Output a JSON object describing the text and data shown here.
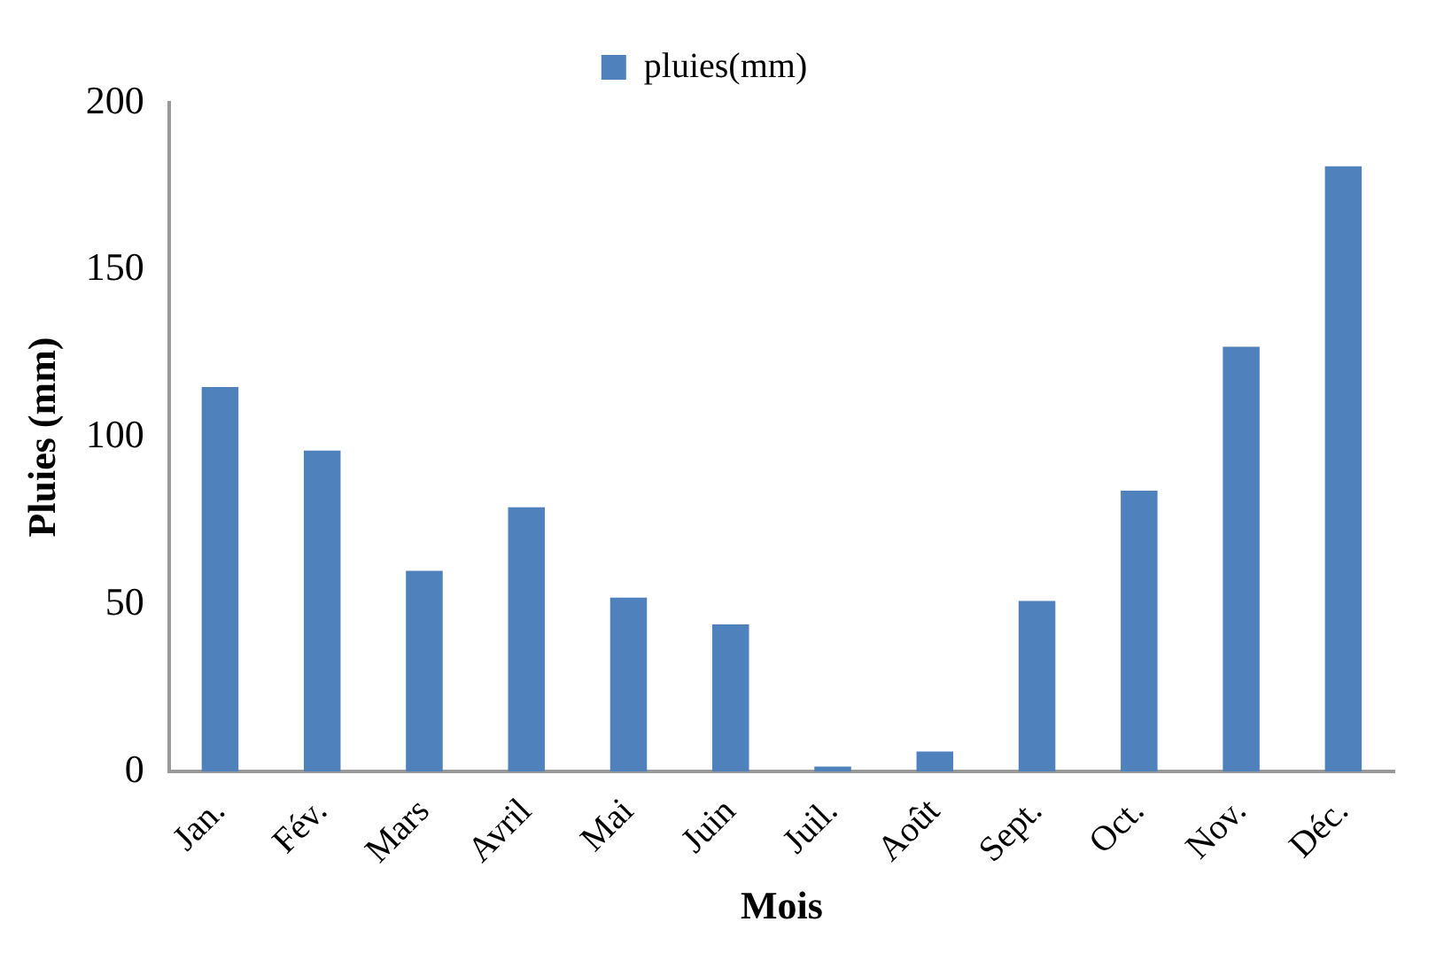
{
  "chart_data": {
    "type": "bar",
    "xlabel": "Mois",
    "ylabel": "Pluies (mm)",
    "categories": [
      "Jan.",
      "Fév.",
      "Mars",
      "Avril",
      "Mai",
      "Juin",
      "Juil.",
      "Août",
      "Sept.",
      "Oct.",
      "Nov.",
      "Déc."
    ],
    "series": [
      {
        "name": "pluies(mm)",
        "color": "#4f81bd",
        "values": [
          115,
          96,
          60,
          79,
          52,
          44,
          1.5,
          6,
          51,
          84,
          127,
          181
        ]
      }
    ],
    "ylim": [
      0,
      200
    ],
    "yticks": [
      0,
      50,
      100,
      150,
      200
    ],
    "grid": false,
    "legend": "top"
  }
}
